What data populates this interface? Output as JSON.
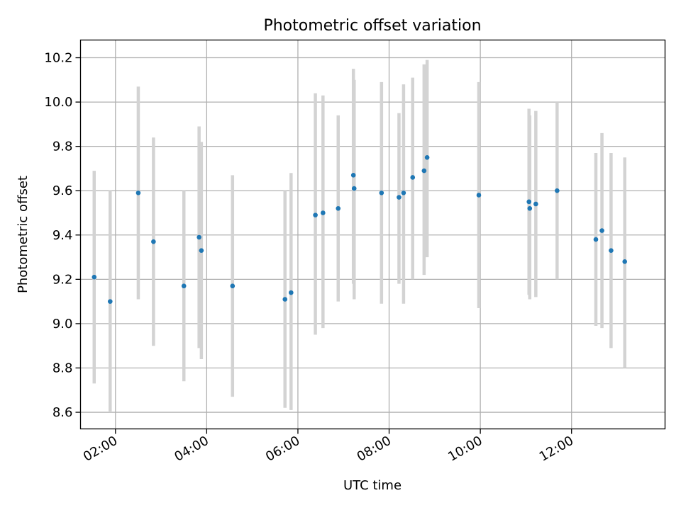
{
  "chart_data": {
    "type": "scatter",
    "title": "Photometric offset variation",
    "xlabel": "UTC time",
    "ylabel": "Photometric offset",
    "xlim": [
      "01:14",
      "14:03"
    ],
    "ylim": [
      8.525,
      10.28
    ],
    "x_ticks": [
      "02:00",
      "04:00",
      "06:00",
      "08:00",
      "10:00",
      "12:00"
    ],
    "y_ticks": [
      "8.6",
      "8.8",
      "9.0",
      "9.2",
      "9.4",
      "9.6",
      "9.8",
      "10.0",
      "10.2"
    ],
    "grid": true,
    "marker_color": "#1f77b4",
    "errorbar_color": "#d3d3d3",
    "series": [
      {
        "points": [
          {
            "x": "01:32",
            "y": 9.21,
            "lo": 8.73,
            "hi": 9.69
          },
          {
            "x": "01:53",
            "y": 9.1,
            "lo": 8.6,
            "hi": 9.6
          },
          {
            "x": "02:30",
            "y": 9.59,
            "lo": 9.11,
            "hi": 10.07
          },
          {
            "x": "02:50",
            "y": 9.37,
            "lo": 8.9,
            "hi": 9.84
          },
          {
            "x": "03:30",
            "y": 9.17,
            "lo": 8.74,
            "hi": 9.6
          },
          {
            "x": "03:50",
            "y": 9.39,
            "lo": 8.89,
            "hi": 9.89
          },
          {
            "x": "03:53",
            "y": 9.33,
            "lo": 8.84,
            "hi": 9.82
          },
          {
            "x": "04:34",
            "y": 9.17,
            "lo": 8.67,
            "hi": 9.67
          },
          {
            "x": "05:43",
            "y": 9.11,
            "lo": 8.62,
            "hi": 9.6
          },
          {
            "x": "05:51",
            "y": 9.14,
            "lo": 8.61,
            "hi": 9.68
          },
          {
            "x": "06:23",
            "y": 9.49,
            "lo": 8.95,
            "hi": 10.04
          },
          {
            "x": "06:33",
            "y": 9.5,
            "lo": 8.98,
            "hi": 10.03
          },
          {
            "x": "06:53",
            "y": 9.52,
            "lo": 9.1,
            "hi": 9.94
          },
          {
            "x": "07:13",
            "y": 9.67,
            "lo": 9.18,
            "hi": 10.15
          },
          {
            "x": "07:14",
            "y": 9.61,
            "lo": 9.11,
            "hi": 10.1
          },
          {
            "x": "07:50",
            "y": 9.59,
            "lo": 9.09,
            "hi": 10.09
          },
          {
            "x": "08:13",
            "y": 9.57,
            "lo": 9.18,
            "hi": 9.95
          },
          {
            "x": "08:19",
            "y": 9.59,
            "lo": 9.09,
            "hi": 10.08
          },
          {
            "x": "08:31",
            "y": 9.66,
            "lo": 9.2,
            "hi": 10.11
          },
          {
            "x": "08:46",
            "y": 9.69,
            "lo": 9.22,
            "hi": 10.17
          },
          {
            "x": "08:50",
            "y": 9.75,
            "lo": 9.3,
            "hi": 10.19
          },
          {
            "x": "09:58",
            "y": 9.58,
            "lo": 9.07,
            "hi": 10.09
          },
          {
            "x": "11:04",
            "y": 9.55,
            "lo": 9.13,
            "hi": 9.97
          },
          {
            "x": "11:05",
            "y": 9.52,
            "lo": 9.11,
            "hi": 9.94
          },
          {
            "x": "11:13",
            "y": 9.54,
            "lo": 9.12,
            "hi": 9.96
          },
          {
            "x": "11:41",
            "y": 9.6,
            "lo": 9.2,
            "hi": 10.0
          },
          {
            "x": "12:32",
            "y": 9.38,
            "lo": 8.99,
            "hi": 9.77
          },
          {
            "x": "12:40",
            "y": 9.42,
            "lo": 8.98,
            "hi": 9.86
          },
          {
            "x": "12:52",
            "y": 9.33,
            "lo": 8.89,
            "hi": 9.77
          },
          {
            "x": "13:10",
            "y": 9.28,
            "lo": 8.8,
            "hi": 9.75
          }
        ]
      }
    ]
  }
}
